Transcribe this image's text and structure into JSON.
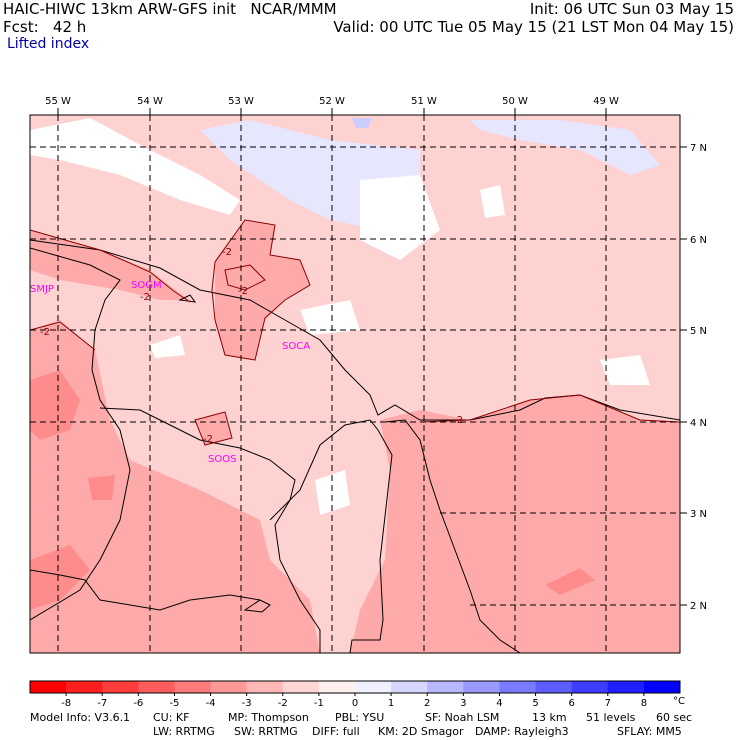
{
  "header": {
    "title_left": "HAIC-HIWC 13km ARW-GFS init   NCAR/MMM",
    "fcst": "Fcst:   42 h",
    "title_right": "Init: 06 UTC Sun 03 May 15",
    "valid": "Valid: 00 UTC Tue 05 May 15 (21 LST Mon 04 May 15)",
    "variable": "Lifted index"
  },
  "map": {
    "lon_labels": [
      "55 W",
      "54 W",
      "53 W",
      "52 W",
      "51 W",
      "50 W",
      "49 W"
    ],
    "lat_labels": [
      "7 N",
      "6 N",
      "5 N",
      "4 N",
      "3 N",
      "2 N"
    ],
    "stations": [
      "SMJP",
      "SOGM",
      "SOCA",
      "SOOS"
    ],
    "contour_label": "-2",
    "colors": {
      "neutral": "#ffffff",
      "m1": "#ffd2d2",
      "m2": "#ffaaaa",
      "m3": "#ff8c8c",
      "p1": "#e6e6ff",
      "p2": "#ccccff",
      "station": "#ff00ff",
      "contour": "#8b0000"
    }
  },
  "colorbar": {
    "unit": "°C",
    "ticks": [
      "-8",
      "-7",
      "-6",
      "-5",
      "-4",
      "-3",
      "-2",
      "-1",
      "0",
      "1",
      "2",
      "3",
      "4",
      "5",
      "6",
      "7",
      "8"
    ],
    "colors": [
      "#ff0000",
      "#ff1f1f",
      "#ff3d3d",
      "#ff5c5c",
      "#ff7a7a",
      "#ff9999",
      "#ffb8b8",
      "#ffd6d6",
      "#fff0f0",
      "#f0f0ff",
      "#d6d6ff",
      "#b8b8ff",
      "#9999ff",
      "#7a7aff",
      "#5c5cff",
      "#3d3dff",
      "#1f1fff",
      "#0000ff"
    ]
  },
  "footer": {
    "row1": [
      "Model Info: V3.6.1",
      "CU: KF",
      "MP: Thompson",
      "PBL: YSU",
      "SF: Noah LSM",
      "13 km",
      "51 levels",
      "60 sec"
    ],
    "row2": [
      "LW: RRTMG",
      "SW: RRTMG",
      "DIFF: full",
      "KM: 2D Smagor",
      "DAMP: Rayleigh3",
      "SFLAY: MM5"
    ]
  }
}
